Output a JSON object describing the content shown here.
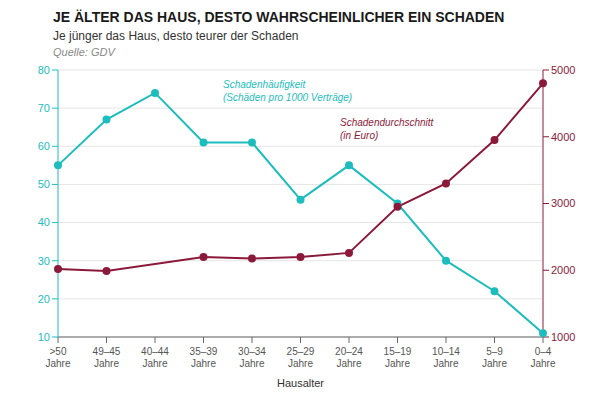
{
  "chart_data": {
    "type": "line",
    "title": "JE ÄLTER DAS HAUS, DESTO WAHRSCHEINLICHER EIN SCHADEN",
    "subtitle": "Je jünger das Haus, desto teurer der Schaden",
    "source": "Quelle: GDV",
    "xlabel": "Hausalter",
    "categories": [
      ">50\nJahre",
      "49–45\nJahre",
      "40–44\nJahre",
      "35–39\nJahre",
      "30–34\nJahre",
      "25–29\nJahre",
      "20–24\nJahre",
      "15–19\nJahre",
      "10–14\nJahre",
      "5–9\nJahre",
      "0–4\nJahre"
    ],
    "series": [
      {
        "color": "#1DBDBD",
        "values": [
          55,
          67,
          74,
          61,
          61,
          46,
          55,
          45,
          30,
          22,
          11
        ]
      },
      {
        "color": "#8B1A3A",
        "axis": "y2",
        "values": [
          2020,
          1990,
          null,
          2200,
          2175,
          2200,
          2260,
          2950,
          3300,
          3950,
          4800
        ]
      }
    ],
    "ylim": [
      10,
      80
    ],
    "yticks": [
      10,
      20,
      30,
      40,
      50,
      60,
      70,
      80
    ],
    "y2lim": [
      1000,
      5000
    ],
    "y2ticks": [
      1000,
      2000,
      3000,
      4000,
      5000
    ],
    "grid": true,
    "annotations": [
      "Schadenhäufigkeit\n(Schäden pro 1000 Verträge)",
      "Schadendurchschnitt\n(in Euro)"
    ]
  }
}
